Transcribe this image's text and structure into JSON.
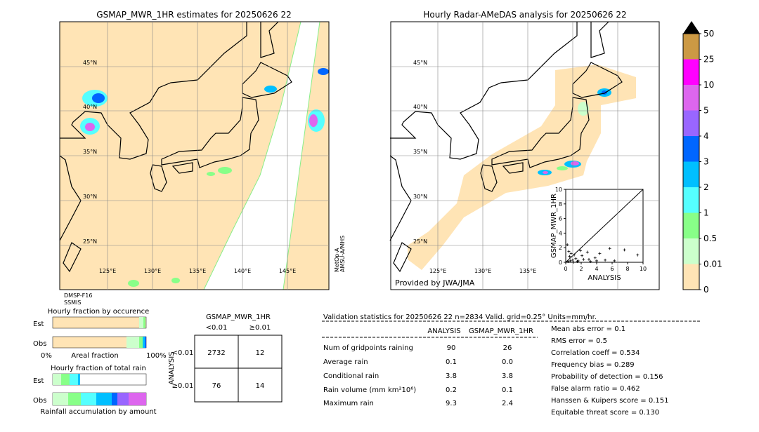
{
  "left_map": {
    "title": "GSMAP_MWR_1HR estimates for 20250626 22",
    "lat_labels": [
      "45°N",
      "40°N",
      "35°N",
      "30°N",
      "25°N"
    ],
    "lon_labels": [
      "125°E",
      "130°E",
      "135°E",
      "140°E",
      "145°E"
    ],
    "sensors_bottom": [
      "DMSP-F16",
      "SSMIS"
    ],
    "sensors_right": [
      "MetOp-A",
      "AMSU-A/MHS"
    ]
  },
  "right_map": {
    "title": "Hourly Radar-AMeDAS analysis for 20250626 22",
    "lat_labels": [
      "45°N",
      "40°N",
      "35°N",
      "30°N",
      "25°N"
    ],
    "lon_labels": [
      "125°E",
      "130°E",
      "135°E"
    ],
    "credit": "Provided by JWA/JMA"
  },
  "inset": {
    "type": "scatter",
    "x_label": "ANALYSIS",
    "y_label": "GSMAP_MWR_1HR",
    "xlim": [
      0,
      10
    ],
    "ylim": [
      0,
      10
    ],
    "xticks": [
      0,
      2,
      4,
      6,
      8,
      10
    ],
    "yticks": [
      0,
      2,
      4,
      6,
      8,
      10
    ],
    "x": [
      0.2,
      0.4,
      0.5,
      0.7,
      0.9,
      1.1,
      1.3,
      1.6,
      1.9,
      2.3,
      2.8,
      3.2,
      3.8,
      4.4,
      5.1,
      5.7,
      6.3,
      7.6,
      9.3,
      0.3,
      0.6,
      1.0,
      1.5,
      2.1,
      3.0,
      4.0
    ],
    "y": [
      2.4,
      1.5,
      0.8,
      1.2,
      0.3,
      1.0,
      0.5,
      0.2,
      1.6,
      0.4,
      1.4,
      0.1,
      0.6,
      1.2,
      0.3,
      1.9,
      0.2,
      1.7,
      1.0,
      0.1,
      0.2,
      0.0,
      0.1,
      0.9,
      0.4,
      0.2
    ]
  },
  "colorbar": {
    "ticks": [
      50,
      25,
      10,
      5,
      4,
      3,
      2,
      1,
      0.5,
      0.01,
      0
    ],
    "colors": [
      "#cc9944",
      "#ff00ff",
      "#dd66ee",
      "#9966ff",
      "#0066ff",
      "#00bfff",
      "#55ffff",
      "#88ff88",
      "#ccffcc",
      "#ffe4b5"
    ]
  },
  "occurrence": {
    "title": "Hourly fraction by occurence",
    "rows": [
      "Est",
      "Obs"
    ],
    "axis_left": "0%",
    "axis_label": "Areal fraction",
    "axis_right": "100%"
  },
  "total_rain": {
    "title": "Hourly fraction of total rain",
    "rows": [
      "Est",
      "Obs"
    ],
    "caption": "Rainfall accumulation by amount"
  },
  "contingency": {
    "title": "GSMAP_MWR_1HR",
    "col_headers": [
      "<0.01",
      "≥0.01"
    ],
    "row_axis": "ANALYSIS",
    "row_headers": [
      "<0.01",
      "≥0.01"
    ],
    "cells": [
      [
        2732,
        12
      ],
      [
        76,
        14
      ]
    ]
  },
  "validation": {
    "title": "Validation statistics for 20250626 22  n=2834 Valid. grid=0.25° Units=mm/hr.",
    "columns": [
      "ANALYSIS",
      "GSMAP_MWR_1HR"
    ],
    "rows": [
      {
        "label": "Num of gridpoints raining",
        "values": [
          90,
          26
        ]
      },
      {
        "label": "Average rain",
        "values": [
          0.1,
          "0.0"
        ]
      },
      {
        "label": "Conditional rain",
        "values": [
          3.8,
          3.8
        ]
      },
      {
        "label": "Rain volume (mm km²10⁶)",
        "values": [
          0.2,
          0.1
        ]
      },
      {
        "label": "Maximum rain",
        "values": [
          9.3,
          2.4
        ]
      }
    ],
    "scores": [
      "Mean abs error =    0.1",
      "RMS error =    0.5",
      "Correlation coeff =  0.534",
      "Frequency bias =  0.289",
      "Probability of detection =  0.156",
      "False alarm ratio =  0.462",
      "Hanssen & Kuipers score =  0.151",
      "Equitable threat score =  0.130"
    ]
  }
}
